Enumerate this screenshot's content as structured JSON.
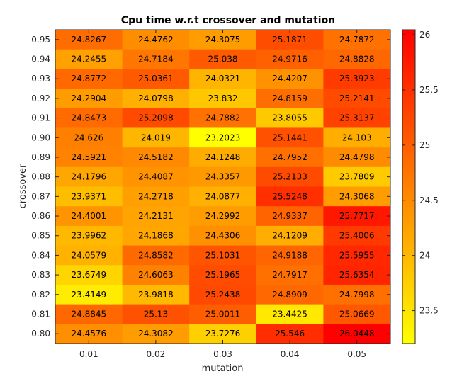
{
  "chart_data": {
    "type": "heatmap",
    "title": "Cpu time w.r.t crossover and mutation",
    "xlabel": "mutation",
    "ylabel": "crossover",
    "x_categories": [
      "0.01",
      "0.02",
      "0.03",
      "0.04",
      "0.05"
    ],
    "y_categories": [
      "0.95",
      "0.94",
      "0.93",
      "0.92",
      "0.91",
      "0.90",
      "0.89",
      "0.88",
      "0.87",
      "0.86",
      "0.85",
      "0.84",
      "0.83",
      "0.82",
      "0.81",
      "0.80"
    ],
    "values": [
      [
        "24.8267",
        "24.4762",
        "24.3075",
        "25.1871",
        "24.7872"
      ],
      [
        "24.2455",
        "24.7184",
        "25.038",
        "24.9716",
        "24.8828"
      ],
      [
        "24.8772",
        "25.0361",
        "24.0321",
        "24.4207",
        "25.3923"
      ],
      [
        "24.2904",
        "24.0798",
        "23.832",
        "24.8159",
        "25.2141"
      ],
      [
        "24.8473",
        "25.2098",
        "24.7882",
        "23.8055",
        "25.3137"
      ],
      [
        "24.626",
        "24.019",
        "23.2023",
        "25.1441",
        "24.103"
      ],
      [
        "24.5921",
        "24.5182",
        "24.1248",
        "24.7952",
        "24.4798"
      ],
      [
        "24.1796",
        "24.4087",
        "24.3357",
        "25.2133",
        "23.7809"
      ],
      [
        "23.9371",
        "24.2718",
        "24.0877",
        "25.5248",
        "24.3068"
      ],
      [
        "24.4001",
        "24.2131",
        "24.2992",
        "24.9337",
        "25.7717"
      ],
      [
        "23.9962",
        "24.1868",
        "24.4306",
        "24.1209",
        "25.4006"
      ],
      [
        "24.0579",
        "24.8582",
        "25.1031",
        "24.9188",
        "25.5955"
      ],
      [
        "23.6749",
        "24.6063",
        "25.1965",
        "24.7917",
        "25.6354"
      ],
      [
        "23.4149",
        "23.9818",
        "25.2438",
        "24.8909",
        "24.7998"
      ],
      [
        "24.8845",
        "25.13",
        "25.0011",
        "23.4425",
        "25.0669"
      ],
      [
        "24.4576",
        "24.3082",
        "23.7276",
        "25.546",
        "26.0448"
      ]
    ],
    "colormap": "autumn",
    "color_low": "#ffff00",
    "color_high": "#ff0000",
    "clim": [
      23.2023,
      26.0448
    ],
    "colorbar_ticks": [
      "23.5",
      "24",
      "24.5",
      "25",
      "25.5",
      "26"
    ]
  }
}
